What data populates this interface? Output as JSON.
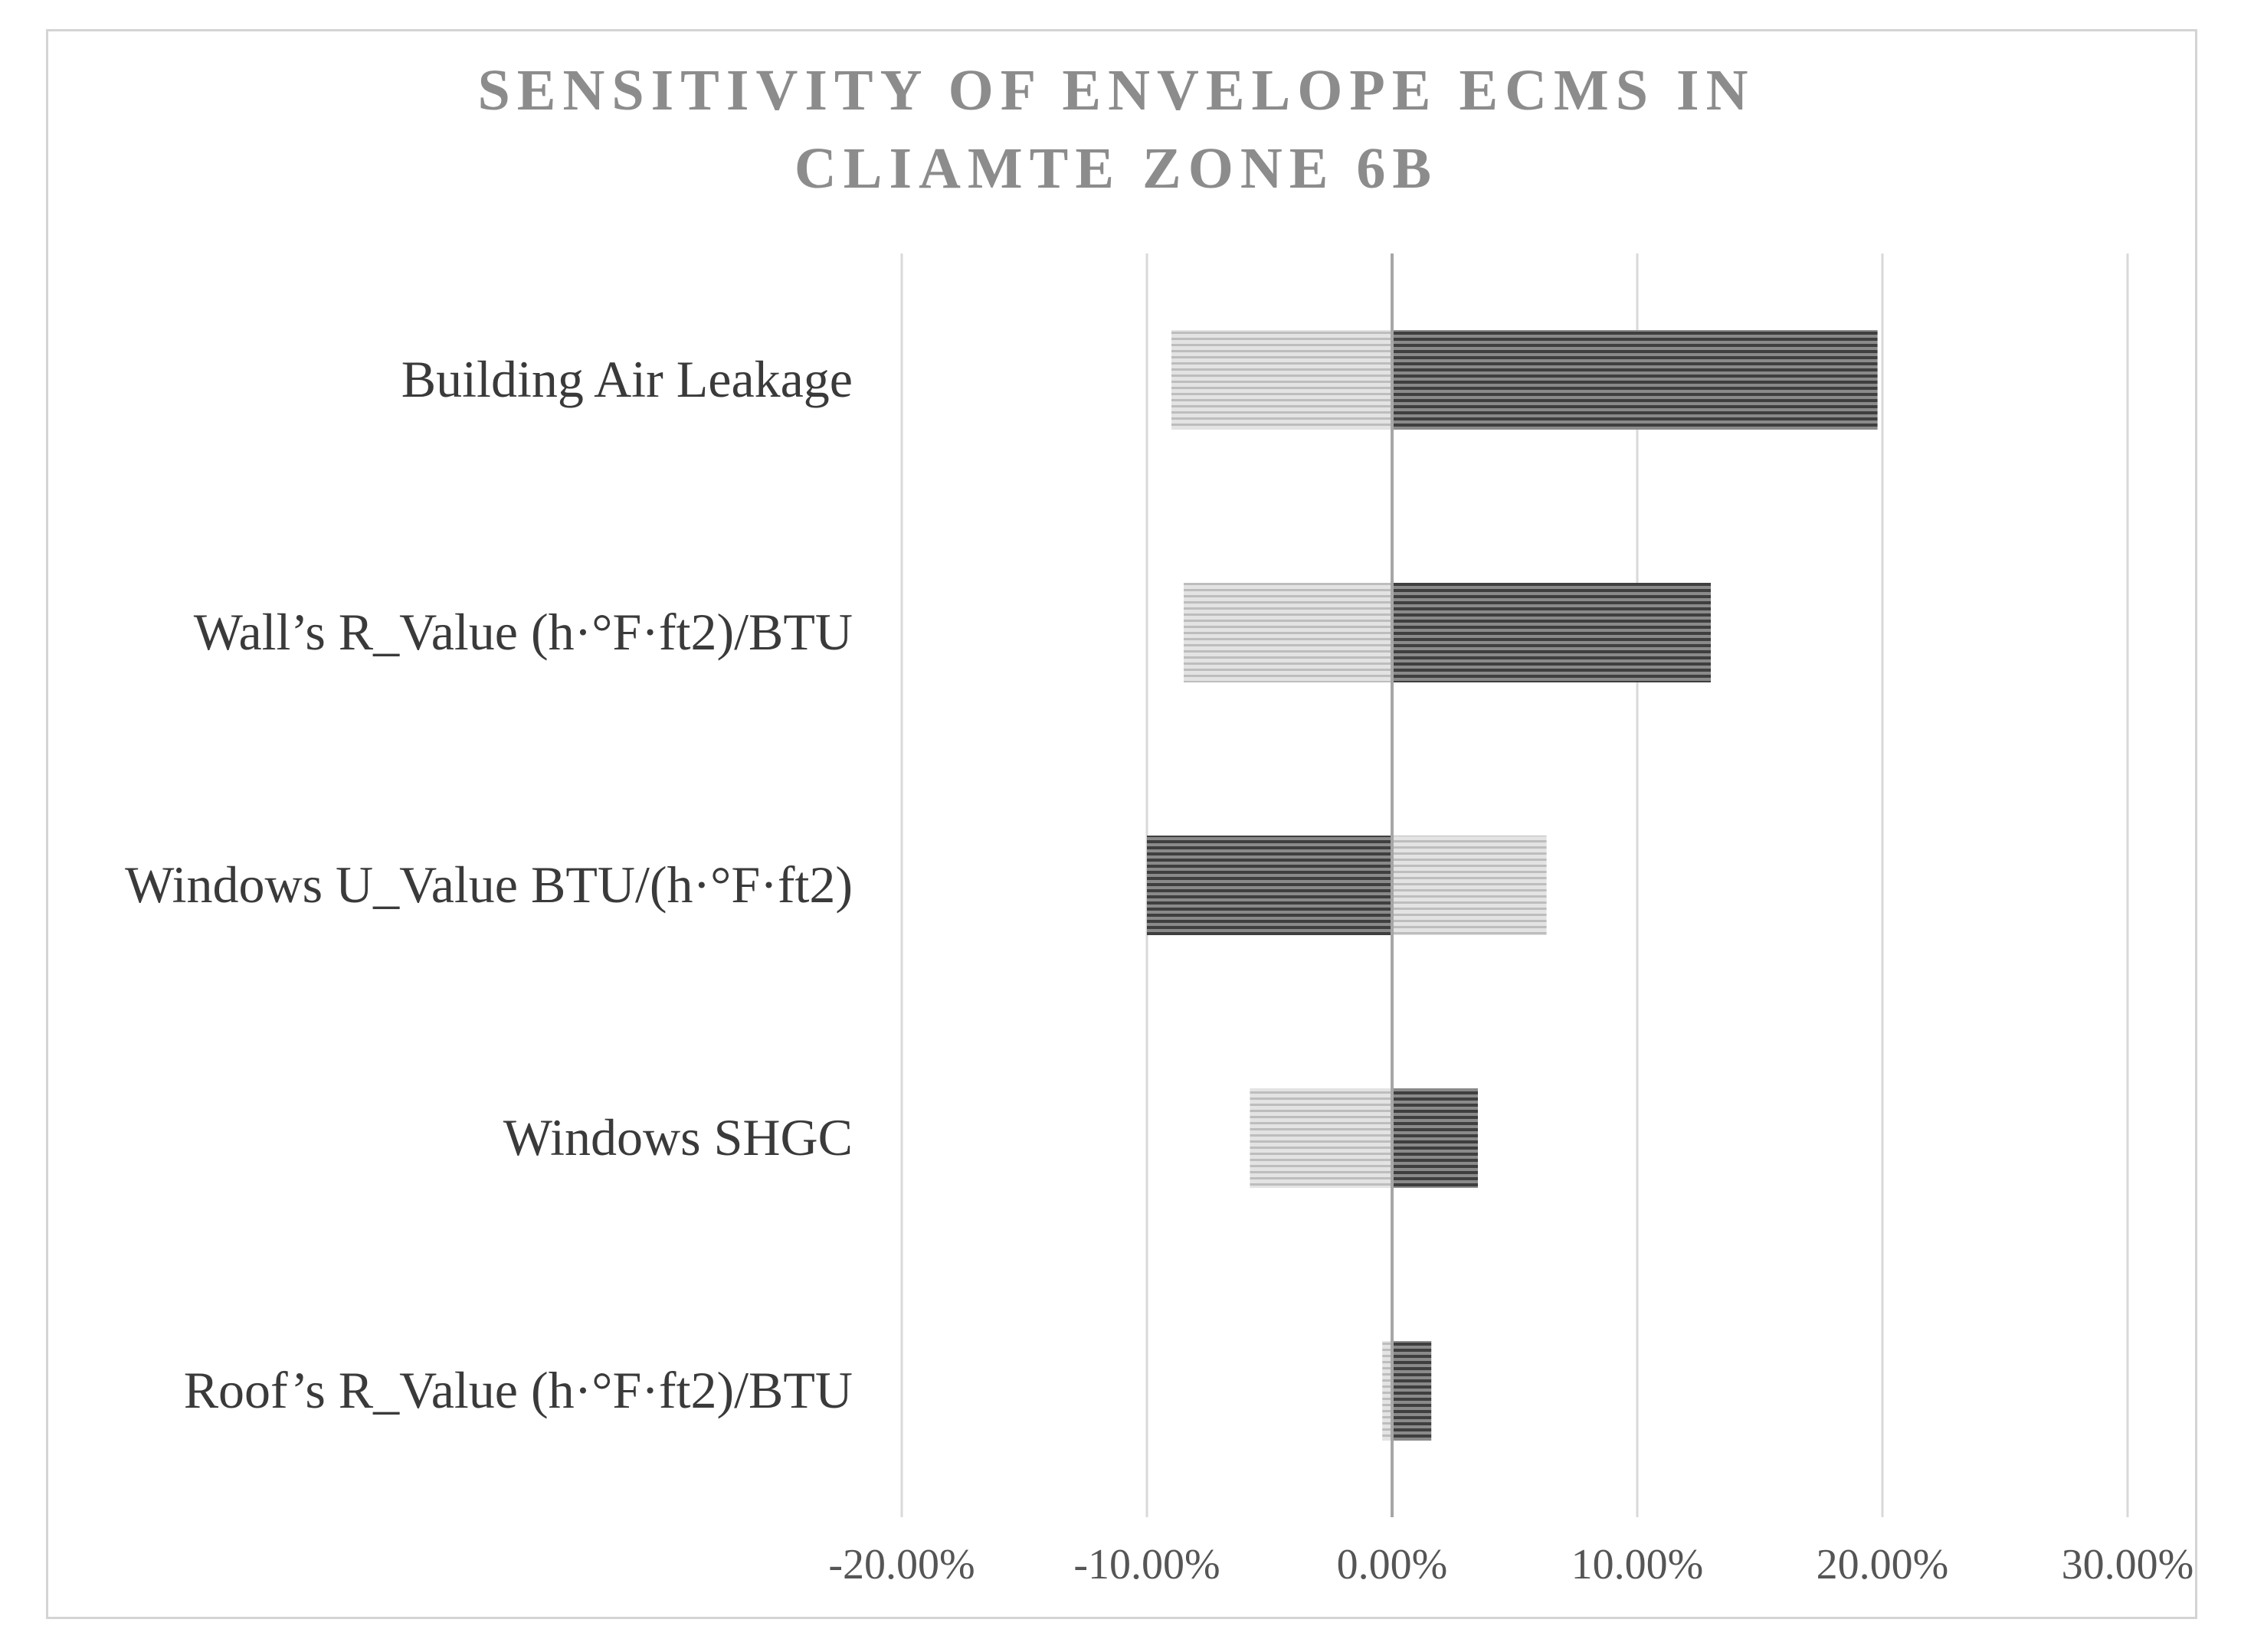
{
  "chart_data": {
    "type": "bar",
    "orientation": "horizontal",
    "chart_style": "tornado",
    "title_lines": [
      "SENSITIVITY OF ENVELOPE ECMS IN",
      "CLIAMTE ZONE 6B"
    ],
    "title": "SENSITIVITY OF ENVELOPE ECMS IN CLIAMTE ZONE 6B",
    "xlabel": "",
    "ylabel": "",
    "xlim": [
      -0.2,
      0.3
    ],
    "x_ticks": [
      -0.2,
      -0.1,
      0.0,
      0.1,
      0.2,
      0.3
    ],
    "x_tick_labels": [
      "-20.00%",
      "-10.00%",
      "0.00%",
      "10.00%",
      "20.00%",
      "30.00%"
    ],
    "grid": true,
    "legend": "none",
    "categories": [
      "Building Air Leakage",
      "Wall’s R_Value (h·°F·ft2)/BTU",
      "Windows U_Value BTU/(h·°F·ft2)",
      "Windows SHGC",
      "Roof’s R_Value (h·°F·ft2)/BTU"
    ],
    "series": [
      {
        "name": "light",
        "color": "#c8c8c8",
        "values": [
          -0.09,
          -0.085,
          0.063,
          -0.058,
          -0.004
        ]
      },
      {
        "name": "dark",
        "color": "#5a5a5a",
        "values": [
          0.198,
          0.13,
          -0.1,
          0.035,
          0.016
        ]
      }
    ]
  }
}
